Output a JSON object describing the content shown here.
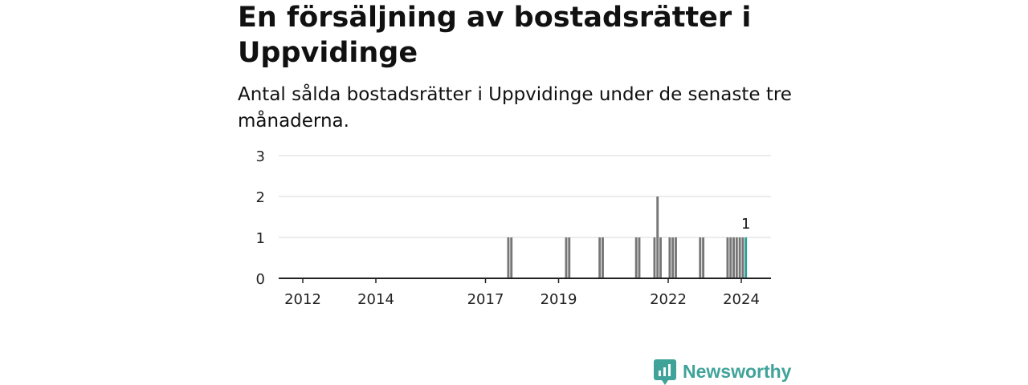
{
  "header": {
    "title": "En försäljning av bostadsrätter i Uppvidinge",
    "subtitle": "Antal sålda bostadsrätter i Uppvidinge under de senaste tre månaderna."
  },
  "brand": {
    "name": "Newsworthy",
    "icon": "newsworthy-logo-icon",
    "color": "#3fa39a"
  },
  "chart_data": {
    "type": "bar",
    "x_tick_labels": [
      "2012",
      "2014",
      "2017",
      "2019",
      "2022",
      "2024"
    ],
    "y_tick_labels": [
      "0",
      "1",
      "2",
      "3"
    ],
    "ylim": [
      0,
      3
    ],
    "grid": true,
    "bar_color": "#767676",
    "highlight_color": "#2aa198",
    "series": [
      {
        "values": [
          {
            "x": "2017-08",
            "y": 1
          },
          {
            "x": "2017-09",
            "y": 1
          },
          {
            "x": "2019-03",
            "y": 1
          },
          {
            "x": "2019-04",
            "y": 1
          },
          {
            "x": "2020-02",
            "y": 1
          },
          {
            "x": "2020-03",
            "y": 1
          },
          {
            "x": "2021-02",
            "y": 1
          },
          {
            "x": "2021-03",
            "y": 1
          },
          {
            "x": "2021-08",
            "y": 1
          },
          {
            "x": "2021-09",
            "y": 2
          },
          {
            "x": "2021-10",
            "y": 1
          },
          {
            "x": "2022-01",
            "y": 1
          },
          {
            "x": "2022-02",
            "y": 1
          },
          {
            "x": "2022-03",
            "y": 1
          },
          {
            "x": "2022-11",
            "y": 1
          },
          {
            "x": "2022-12",
            "y": 1
          },
          {
            "x": "2023-08",
            "y": 1
          },
          {
            "x": "2023-09",
            "y": 1
          },
          {
            "x": "2023-10",
            "y": 1
          },
          {
            "x": "2023-11",
            "y": 1
          },
          {
            "x": "2023-12",
            "y": 1
          },
          {
            "x": "2024-01",
            "y": 1
          },
          {
            "x": "2024-02",
            "y": 1,
            "highlight": true
          }
        ]
      }
    ],
    "annotation": {
      "x": "2024-02",
      "text": "1"
    }
  }
}
